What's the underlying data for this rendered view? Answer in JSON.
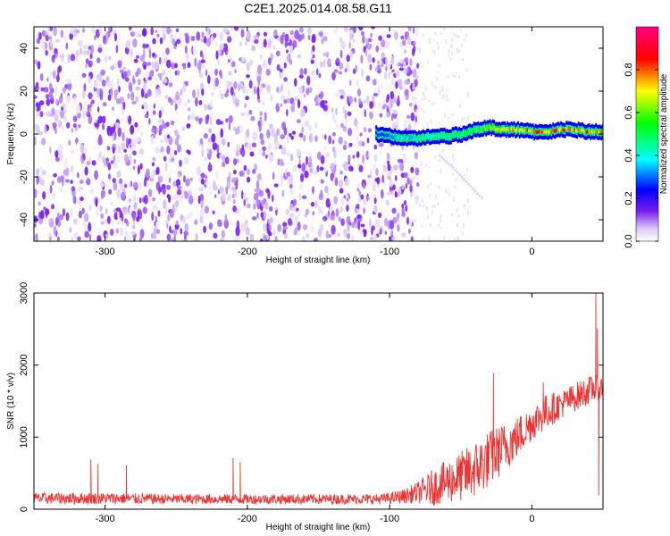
{
  "title": "C2E1.2025.014.08.58.G11",
  "chart_data": [
    {
      "type": "heatmap",
      "xlabel": "Height of straight line (km)",
      "ylabel": "Frequency (Hz)",
      "xlim": [
        -350,
        50
      ],
      "ylim": [
        -50,
        50
      ],
      "x_ticks": [
        -300,
        -200,
        -100,
        0
      ],
      "y_ticks": [
        -40,
        -20,
        0,
        20,
        40
      ],
      "grid": false,
      "colorbar": {
        "label": "Normalized spectral amplitude",
        "range": [
          0,
          1
        ],
        "ticks": [
          0.0,
          0.2,
          0.4,
          0.6,
          0.8
        ],
        "tick_labels": [
          "0.0",
          "0.2",
          "0.4",
          "0.6",
          "0.8"
        ],
        "colormap": [
          "#ffffff",
          "#d9c8f5",
          "#7a1cf0",
          "#0000ff",
          "#00ffff",
          "#00ff00",
          "#ffff00",
          "#ff0000",
          "#ff0080"
        ]
      },
      "signal_track": {
        "x": [
          -110,
          -100,
          -90,
          -80,
          -70,
          -60,
          -50,
          -40,
          -30,
          -20,
          -10,
          0,
          10,
          20,
          30,
          40,
          50
        ],
        "frequency": [
          0,
          -1,
          -2,
          -2,
          -1,
          -1,
          0,
          2,
          3,
          2,
          2,
          1,
          1,
          2,
          2,
          1,
          1
        ],
        "amplitude": [
          0.25,
          0.35,
          0.4,
          0.45,
          0.5,
          0.5,
          0.55,
          0.6,
          0.7,
          0.75,
          0.8,
          0.85,
          0.85,
          0.9,
          0.85,
          0.85,
          0.8
        ]
      },
      "noise": {
        "x_range": [
          -350,
          -80
        ],
        "frequency_range": [
          -50,
          50
        ],
        "amplitude_range": [
          0.02,
          0.15
        ]
      },
      "secondary_trace": {
        "x": [
          -65,
          -55,
          -45,
          -35
        ],
        "frequency": [
          -10,
          -16,
          -23,
          -30
        ],
        "amplitude": 0.05
      }
    },
    {
      "type": "line",
      "xlabel": "Height of straight line (km)",
      "ylabel": "SNR (10 * v/v)",
      "xlim": [
        -350,
        50
      ],
      "ylim": [
        0,
        3000
      ],
      "x_ticks": [
        -300,
        -200,
        -100,
        0
      ],
      "y_ticks": [
        0,
        1000,
        2000,
        3000
      ],
      "grid": false,
      "color": "#ee3333",
      "envelope": {
        "x": [
          -350,
          -300,
          -250,
          -200,
          -150,
          -110,
          -100,
          -90,
          -80,
          -70,
          -60,
          -50,
          -40,
          -30,
          -20,
          -10,
          0,
          10,
          20,
          30,
          40,
          50
        ],
        "median": [
          150,
          150,
          140,
          140,
          140,
          140,
          150,
          180,
          230,
          300,
          380,
          450,
          550,
          700,
          850,
          1000,
          1200,
          1350,
          1450,
          1550,
          1650,
          1700
        ],
        "spread": [
          80,
          80,
          70,
          70,
          70,
          70,
          80,
          100,
          150,
          250,
          300,
          350,
          400,
          400,
          350,
          300,
          250,
          250,
          200,
          200,
          200,
          150
        ]
      },
      "spikes": [
        {
          "x": -310,
          "y": 680
        },
        {
          "x": -305,
          "y": 620
        },
        {
          "x": -285,
          "y": 600
        },
        {
          "x": -210,
          "y": 700
        },
        {
          "x": -205,
          "y": 640
        },
        {
          "x": -27,
          "y": 1880
        },
        {
          "x": 8,
          "y": 1750
        },
        {
          "x": 45,
          "y": 3000
        },
        {
          "x": 46,
          "y": 2500
        },
        {
          "x": 47,
          "y": 200
        }
      ]
    }
  ]
}
